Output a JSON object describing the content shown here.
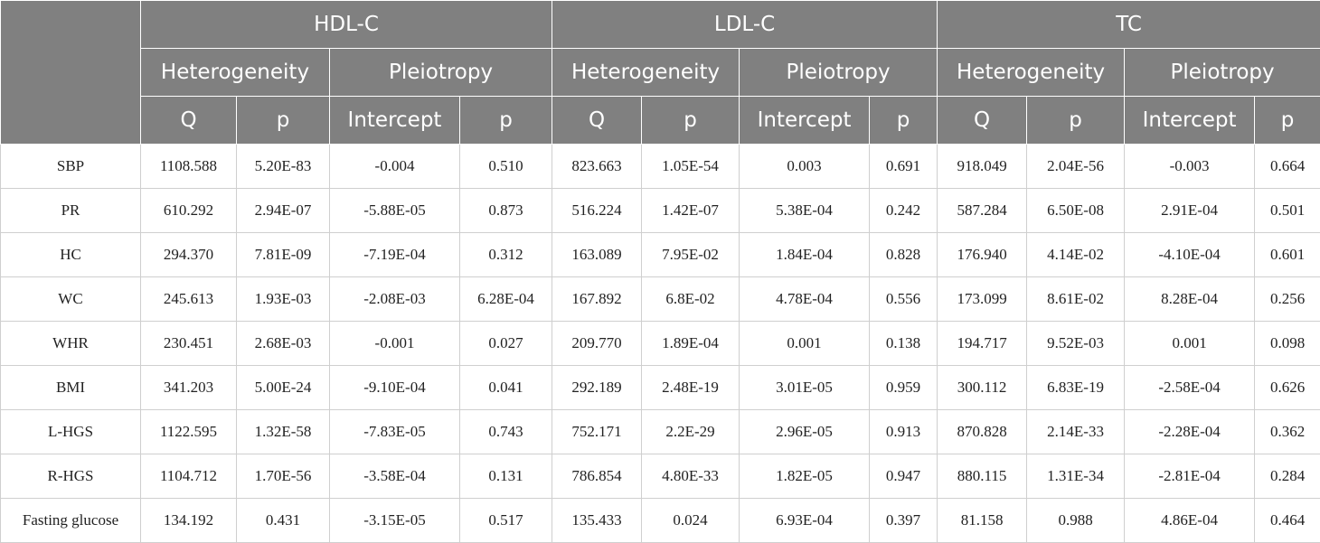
{
  "groups": [
    "HDL-C",
    "LDL-C",
    "TC"
  ],
  "subgroups": [
    "Heterogeneity",
    "Pleiotropy"
  ],
  "columns": [
    "Q",
    "p",
    "Intercept",
    "p"
  ],
  "rows": [
    {
      "label": "SBP",
      "values": [
        "1108.588",
        "5.20E-83",
        "-0.004",
        "0.510",
        "823.663",
        "1.05E-54",
        "0.003",
        "0.691",
        "918.049",
        "2.04E-56",
        "-0.003",
        "0.664"
      ]
    },
    {
      "label": "PR",
      "values": [
        "610.292",
        "2.94E-07",
        "-5.88E-05",
        "0.873",
        "516.224",
        "1.42E-07",
        "5.38E-04",
        "0.242",
        "587.284",
        "6.50E-08",
        "2.91E-04",
        "0.501"
      ]
    },
    {
      "label": "HC",
      "values": [
        "294.370",
        "7.81E-09",
        "-7.19E-04",
        "0.312",
        "163.089",
        "7.95E-02",
        "1.84E-04",
        "0.828",
        "176.940",
        "4.14E-02",
        "-4.10E-04",
        "0.601"
      ]
    },
    {
      "label": "WC",
      "values": [
        "245.613",
        "1.93E-03",
        "-2.08E-03",
        "6.28E-04",
        "167.892",
        "6.8E-02",
        "4.78E-04",
        "0.556",
        "173.099",
        "8.61E-02",
        "8.28E-04",
        "0.256"
      ]
    },
    {
      "label": "WHR",
      "values": [
        "230.451",
        "2.68E-03",
        "-0.001",
        "0.027",
        "209.770",
        "1.89E-04",
        "0.001",
        "0.138",
        "194.717",
        "9.52E-03",
        "0.001",
        "0.098"
      ]
    },
    {
      "label": "BMI",
      "values": [
        "341.203",
        "5.00E-24",
        "-9.10E-04",
        "0.041",
        "292.189",
        "2.48E-19",
        "3.01E-05",
        "0.959",
        "300.112",
        "6.83E-19",
        "-2.58E-04",
        "0.626"
      ]
    },
    {
      "label": "L-HGS",
      "values": [
        "1122.595",
        "1.32E-58",
        "-7.83E-05",
        "0.743",
        "752.171",
        "2.2E-29",
        "2.96E-05",
        "0.913",
        "870.828",
        "2.14E-33",
        "-2.28E-04",
        "0.362"
      ]
    },
    {
      "label": "R-HGS",
      "values": [
        "1104.712",
        "1.70E-56",
        "-3.58E-04",
        "0.131",
        "786.854",
        "4.80E-33",
        "1.82E-05",
        "0.947",
        "880.115",
        "1.31E-34",
        "-2.81E-04",
        "0.284"
      ]
    },
    {
      "label": "Fasting glucose",
      "values": [
        "134.192",
        "0.431",
        "-3.15E-05",
        "0.517",
        "135.433",
        "0.024",
        "6.93E-04",
        "0.397",
        "81.158",
        "0.988",
        "4.86E-04",
        "0.464"
      ]
    }
  ]
}
